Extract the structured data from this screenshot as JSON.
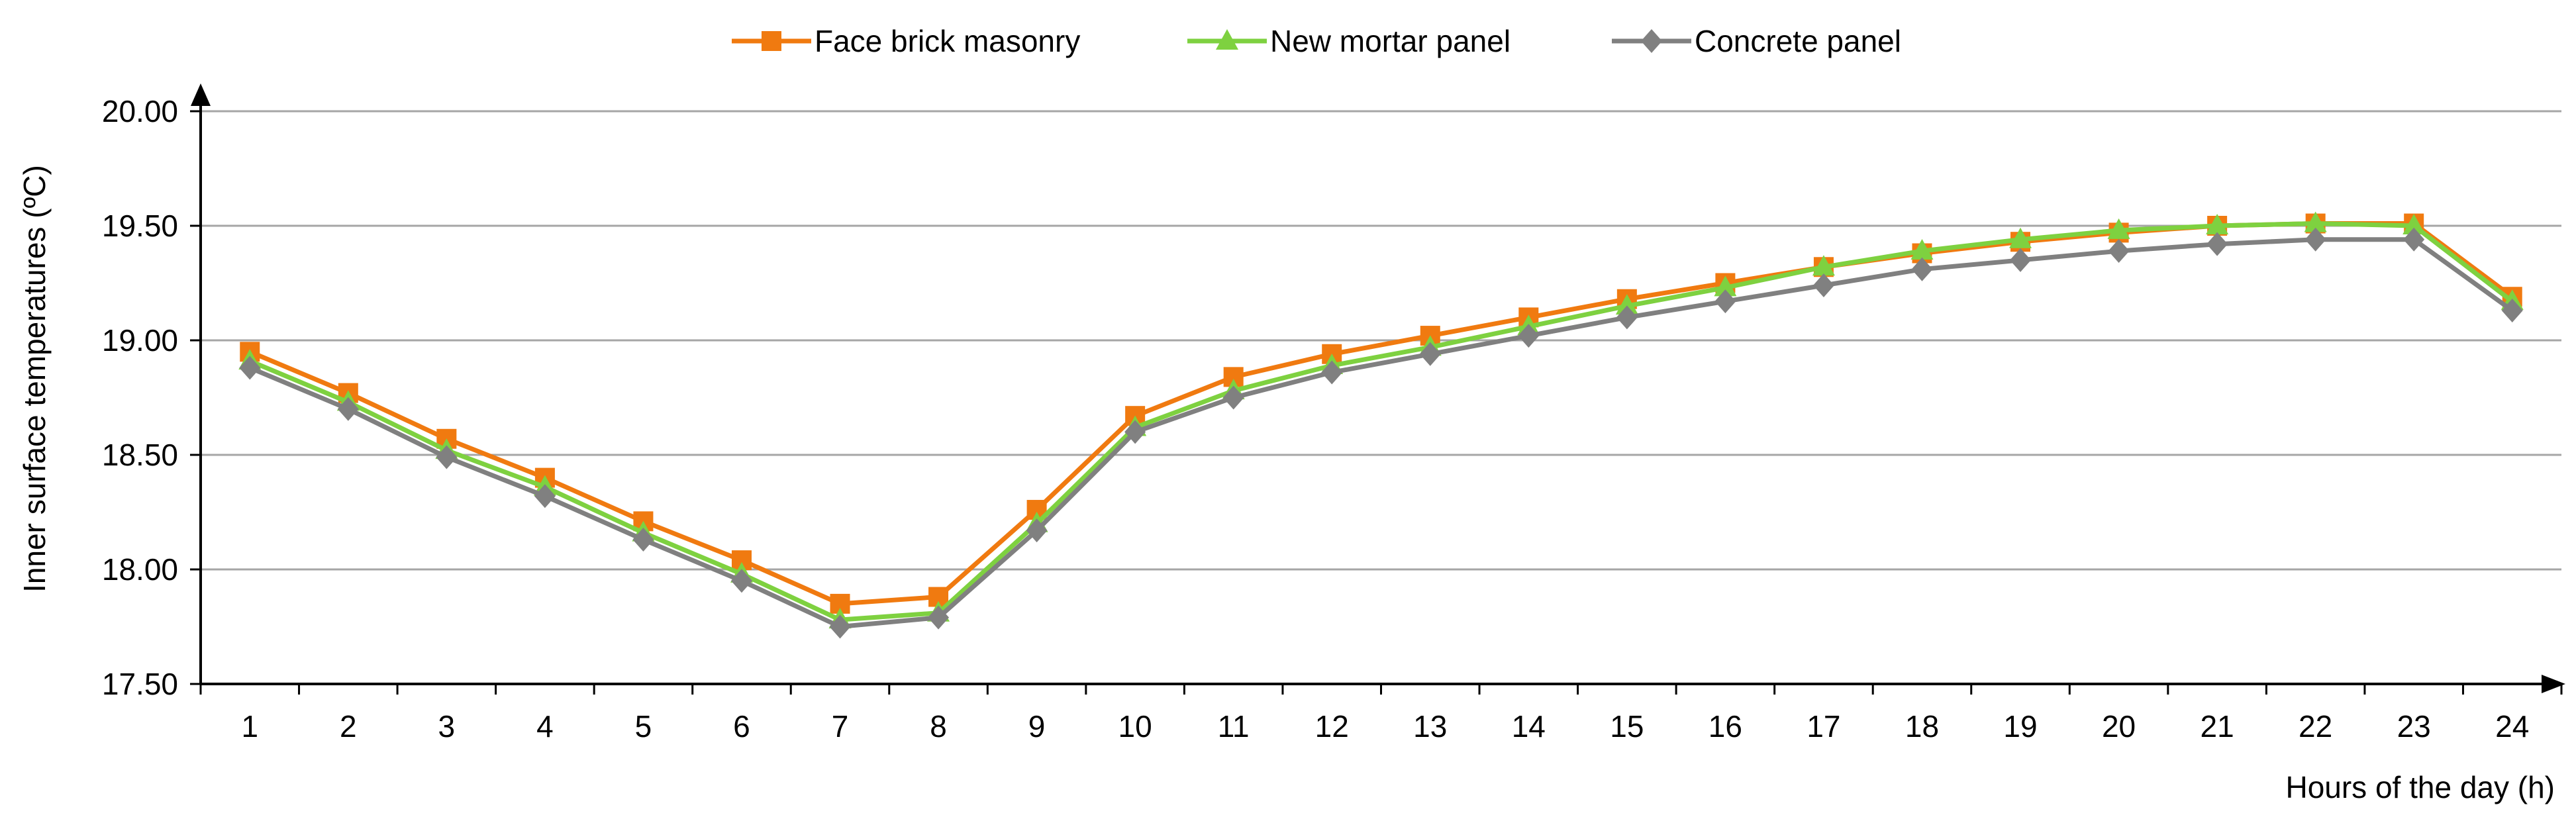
{
  "chart_data": {
    "type": "line",
    "title": "",
    "xlabel": "Hours of the day (h)",
    "ylabel": "Inner surface temperatures (ºC)",
    "x": [
      1,
      2,
      3,
      4,
      5,
      6,
      7,
      8,
      9,
      10,
      11,
      12,
      13,
      14,
      15,
      16,
      17,
      18,
      19,
      20,
      21,
      22,
      23,
      24
    ],
    "x_tick_labels": [
      "1",
      "2",
      "3",
      "4",
      "5",
      "6",
      "7",
      "8",
      "9",
      "10",
      "11",
      "12",
      "13",
      "14",
      "15",
      "16",
      "17",
      "18",
      "19",
      "20",
      "21",
      "22",
      "23",
      "24"
    ],
    "ylim": [
      17.5,
      20.0
    ],
    "y_ticks": [
      17.5,
      18.0,
      18.5,
      19.0,
      19.5,
      20.0
    ],
    "y_tick_labels": [
      "17.50",
      "18.00",
      "18.50",
      "19.00",
      "19.50",
      "20.00"
    ],
    "grid": "horizontal",
    "legend_position": "top-center",
    "series": [
      {
        "name": "Face brick masonry",
        "color": "#F07A10",
        "marker": "square",
        "values": [
          18.95,
          18.77,
          18.57,
          18.4,
          18.21,
          18.04,
          17.85,
          17.88,
          18.26,
          18.67,
          18.84,
          18.94,
          19.02,
          19.1,
          19.18,
          19.25,
          19.32,
          19.38,
          19.43,
          19.47,
          19.5,
          19.51,
          19.51,
          19.19
        ]
      },
      {
        "name": "New mortar panel",
        "color": "#7ED140",
        "marker": "triangle",
        "values": [
          18.91,
          18.73,
          18.52,
          18.36,
          18.16,
          17.98,
          17.78,
          17.81,
          18.2,
          18.62,
          18.78,
          18.89,
          18.97,
          19.06,
          19.15,
          19.23,
          19.32,
          19.39,
          19.44,
          19.48,
          19.5,
          19.51,
          19.5,
          19.17
        ]
      },
      {
        "name": "Concrete panel",
        "color": "#808080",
        "marker": "diamond",
        "values": [
          18.88,
          18.7,
          18.49,
          18.32,
          18.13,
          17.95,
          17.75,
          17.79,
          18.17,
          18.6,
          18.75,
          18.86,
          18.94,
          19.02,
          19.1,
          19.17,
          19.24,
          19.31,
          19.35,
          19.39,
          19.42,
          19.44,
          19.44,
          19.13
        ]
      }
    ]
  }
}
